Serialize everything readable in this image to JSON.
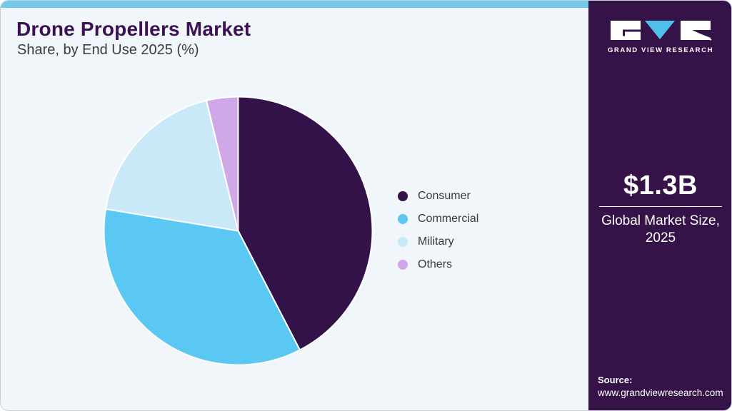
{
  "header": {
    "title": "Drone Propellers Market",
    "subtitle": "Share, by End Use 2025 (%)"
  },
  "chart_data": {
    "type": "pie",
    "title": "Drone Propellers Market Share, by End Use 2025 (%)",
    "categories": [
      "Consumer",
      "Commercial",
      "Military",
      "Others"
    ],
    "values": [
      42.4,
      35.2,
      18.6,
      3.8
    ],
    "unit": "%",
    "colors": [
      "#321248",
      "#5ac8f2",
      "#c9e9f9",
      "#d0a7e8"
    ],
    "legend_position": "right",
    "start_angle_deg": 0,
    "direction": "clockwise",
    "slice_separator_color": "#ffffff"
  },
  "sidebar": {
    "logo_text": "GRAND VIEW RESEARCH",
    "market_size": "$1.3B",
    "market_label_line1": "Global Market Size,",
    "market_label_line2": "2025",
    "source_label": "Source:",
    "source_url": "www.grandviewresearch.com"
  },
  "theme": {
    "accent_bar": "#74c8ea",
    "panel_bg": "#f0f6fa",
    "sidebar_bg": "#351349",
    "title_color": "#3c1053",
    "subtitle_color": "#3c3a43",
    "legend_text_color": "#3b3741",
    "logo_triangle": "#4fc0ea",
    "logo_block": "#ffffff"
  }
}
